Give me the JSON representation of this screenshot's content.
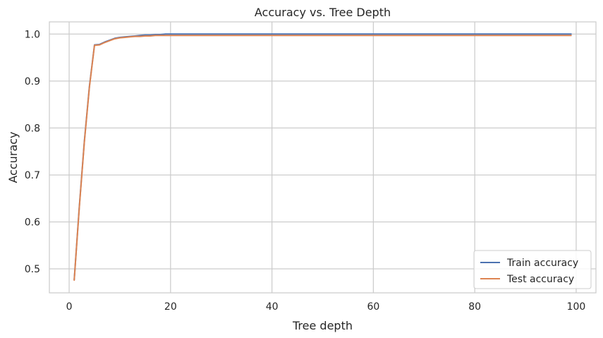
{
  "chart_data": {
    "type": "line",
    "title": "Accuracy vs. Tree Depth",
    "xlabel": "Tree depth",
    "ylabel": "Accuracy",
    "xlim": [
      -3.9,
      103.9
    ],
    "ylim": [
      0.449,
      1.026
    ],
    "x_ticks": [
      0,
      20,
      40,
      60,
      80,
      100
    ],
    "x_tick_labels": [
      "0",
      "20",
      "40",
      "60",
      "80",
      "100"
    ],
    "y_ticks": [
      0.5,
      0.6,
      0.7,
      0.8,
      0.9,
      1.0
    ],
    "y_tick_labels": [
      "0.5",
      "0.6",
      "0.7",
      "0.8",
      "0.9",
      "1.0"
    ],
    "grid": true,
    "legend_position": "bottom-right",
    "series": [
      {
        "name": "Train accuracy",
        "color": "#4c72b0",
        "x": [
          1,
          2,
          3,
          4,
          5,
          6,
          7,
          8,
          9,
          10,
          11,
          12,
          13,
          14,
          15,
          16,
          17,
          18,
          19,
          20,
          25,
          30,
          40,
          50,
          60,
          70,
          80,
          90,
          99
        ],
        "y": [
          0.477,
          0.632,
          0.772,
          0.889,
          0.977,
          0.978,
          0.983,
          0.987,
          0.991,
          0.993,
          0.994,
          0.995,
          0.996,
          0.997,
          0.998,
          0.998,
          0.999,
          0.999,
          1.0,
          1.0,
          1.0,
          1.0,
          1.0,
          1.0,
          1.0,
          1.0,
          1.0,
          1.0,
          1.0
        ]
      },
      {
        "name": "Test accuracy",
        "color": "#dd8452",
        "x": [
          1,
          2,
          3,
          4,
          5,
          6,
          7,
          8,
          9,
          10,
          11,
          12,
          13,
          14,
          15,
          16,
          17,
          18,
          19,
          20,
          25,
          30,
          40,
          50,
          60,
          70,
          80,
          90,
          99
        ],
        "y": [
          0.476,
          0.63,
          0.77,
          0.887,
          0.976,
          0.977,
          0.982,
          0.986,
          0.99,
          0.992,
          0.993,
          0.994,
          0.995,
          0.995,
          0.996,
          0.996,
          0.997,
          0.997,
          0.997,
          0.997,
          0.997,
          0.997,
          0.997,
          0.997,
          0.997,
          0.997,
          0.997,
          0.997,
          0.997
        ]
      }
    ]
  }
}
